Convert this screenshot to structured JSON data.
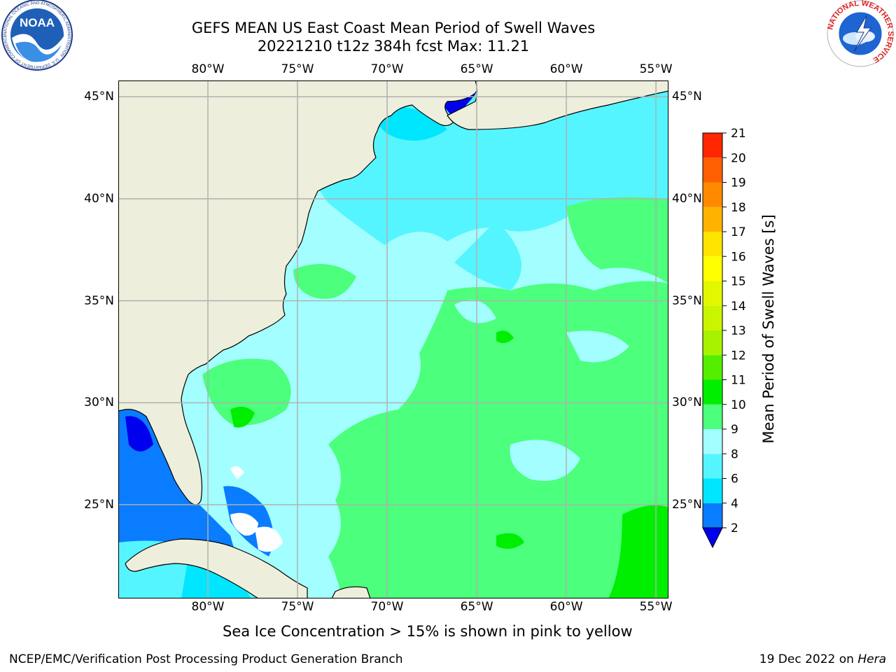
{
  "header": {
    "title_line1": "GEFS MEAN US East Coast Mean Period of Swell Waves",
    "title_line2": "20221210 t12z 384h fcst   Max: 11.21"
  },
  "logos": {
    "left": {
      "icon": "noaa-logo",
      "text": "NOAA",
      "ring_text": "NATIONAL OCEANIC AND ATMOSPHERIC ADMINISTRATION · U.S. DEPARTMENT OF COMMERCE"
    },
    "right": {
      "icon": "nws-logo",
      "ring_text": "NATIONAL WEATHER SERVICE"
    }
  },
  "map": {
    "projection": "equirectangular",
    "lon_range": [
      -85,
      -54.3
    ],
    "lat_range": [
      20.4,
      45.8
    ],
    "lon_ticks": [
      {
        "value": -80,
        "label": "80°W"
      },
      {
        "value": -75,
        "label": "75°W"
      },
      {
        "value": -70,
        "label": "70°W"
      },
      {
        "value": -65,
        "label": "65°W"
      },
      {
        "value": -60,
        "label": "60°W"
      },
      {
        "value": -55,
        "label": "55°W"
      }
    ],
    "lat_ticks": [
      {
        "value": 45,
        "label": "45°N"
      },
      {
        "value": 40,
        "label": "40°N"
      },
      {
        "value": 35,
        "label": "35°N"
      },
      {
        "value": 30,
        "label": "30°N"
      },
      {
        "value": 25,
        "label": "25°N"
      }
    ],
    "colors": {
      "land": "#eeeedc",
      "grid": "#b0b0b0",
      "coast": "#000000"
    }
  },
  "colorbar": {
    "label": "Mean Period of Swell Waves [s]",
    "extend": "min",
    "ticks": [
      "2",
      "4",
      "6",
      "8",
      "9",
      "10",
      "11",
      "12",
      "13",
      "14",
      "15",
      "16",
      "17",
      "18",
      "19",
      "20",
      "21"
    ],
    "colors": [
      "#0a7cff",
      "#00e6ff",
      "#55f5ff",
      "#a3ffff",
      "#4cff7c",
      "#00ee00",
      "#55ee00",
      "#a8f200",
      "#c9f500",
      "#e2f700",
      "#ffff00",
      "#ffe400",
      "#ffb300",
      "#ff8a00",
      "#ff5f00",
      "#ff2600"
    ],
    "under_color": "#0000ee"
  },
  "notes": {
    "ice": "Sea Ice Concentration > 15% is shown in pink to yellow"
  },
  "footer": {
    "left": "NCEP/EMC/Verification Post Processing Product Generation Branch",
    "right_date": "19 Dec 2022 on",
    "right_host": "Hera"
  }
}
